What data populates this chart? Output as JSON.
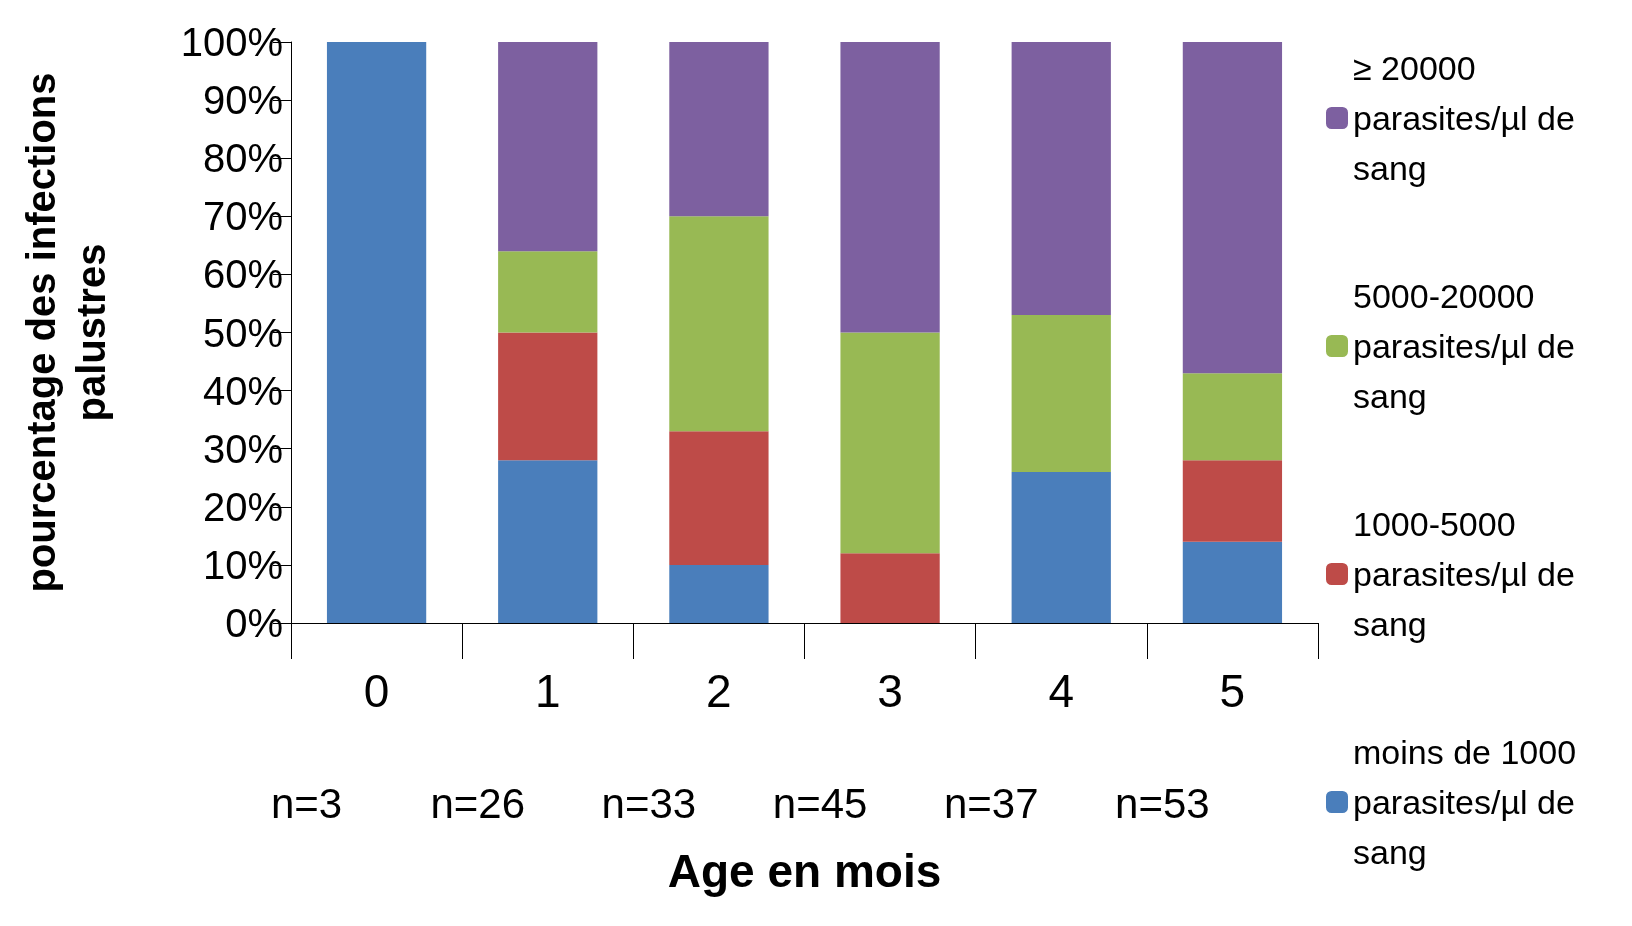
{
  "chart_data": {
    "type": "bar",
    "stacked": true,
    "xlabel": "Age en mois",
    "ylabel": "pourcentage des infections\npalustres",
    "categories": [
      "0",
      "1",
      "2",
      "3",
      "4",
      "5"
    ],
    "series": [
      {
        "name": "moins de 1000 parasites/µl de sang",
        "color": "#4a7ebb",
        "values": [
          100,
          28,
          10,
          0,
          26,
          14
        ]
      },
      {
        "name": "1000-5000 parasites/µl de sang",
        "color": "#be4b48",
        "values": [
          0,
          22,
          23,
          12,
          0,
          14
        ]
      },
      {
        "name": "5000-20000 parasites/µl de sang",
        "color": "#98b954",
        "values": [
          0,
          14,
          37,
          38,
          27,
          15
        ]
      },
      {
        "name": "≥ 20000 parasites/µl de sang",
        "color": "#7d60a0",
        "values": [
          0,
          36,
          30,
          50,
          47,
          57
        ]
      }
    ],
    "ylim": [
      0,
      100
    ],
    "yticks": [
      {
        "value": 0,
        "label": "0%"
      },
      {
        "value": 10,
        "label": "10%"
      },
      {
        "value": 20,
        "label": "20%"
      },
      {
        "value": 30,
        "label": "30%"
      },
      {
        "value": 40,
        "label": "40%"
      },
      {
        "value": 50,
        "label": "50%"
      },
      {
        "value": 60,
        "label": "60%"
      },
      {
        "value": 70,
        "label": "70%"
      },
      {
        "value": 80,
        "label": "80%"
      },
      {
        "value": 90,
        "label": "90%"
      },
      {
        "value": 100,
        "label": "100%"
      }
    ],
    "annotations": [
      "n=3",
      "n=26",
      "n=33",
      "n=45",
      "n=37",
      "n=53"
    ],
    "grid": false,
    "legend": "right"
  }
}
